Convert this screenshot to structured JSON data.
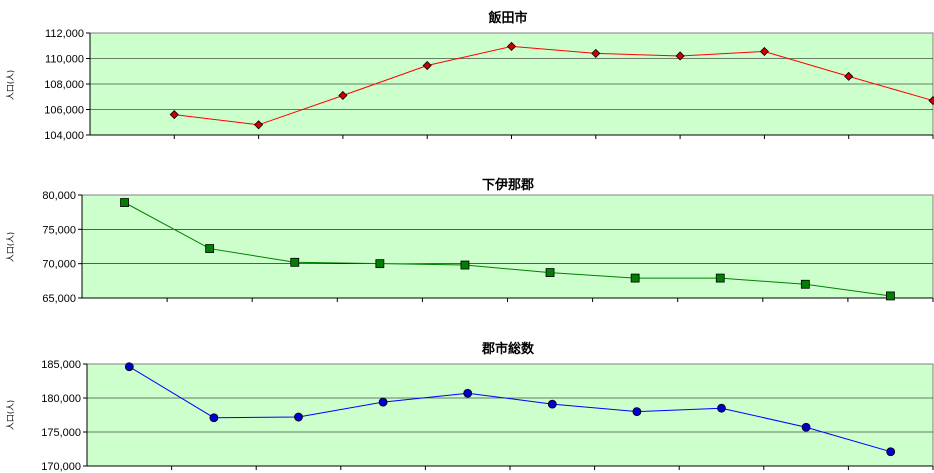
{
  "chart_data": [
    {
      "type": "line",
      "title": "飯田市",
      "ylabel": "人口(人)",
      "xlabel": "",
      "ylim": [
        104000,
        112000
      ],
      "yticks": [
        104000,
        106000,
        108000,
        110000,
        112000
      ],
      "ytick_labels": [
        "104,000",
        "106,000",
        "108,000",
        "110,000",
        "112,000"
      ],
      "grid": true,
      "plot_color": "#ccffcc",
      "series": [
        {
          "color": "#ff0000",
          "marker": "diamond",
          "marker_fill": "#cc0000",
          "values": [
            105600,
            104800,
            107100,
            109450,
            110950,
            110400,
            110200,
            110550,
            108600,
            106700
          ]
        }
      ]
    },
    {
      "type": "line",
      "title": "下伊那郡",
      "ylabel": "人口(人)",
      "xlabel": "",
      "ylim": [
        65000,
        80000
      ],
      "yticks": [
        65000,
        70000,
        75000,
        80000
      ],
      "ytick_labels": [
        "65,000",
        "70,000",
        "75,000",
        "80,000"
      ],
      "grid": true,
      "plot_color": "#ccffcc",
      "series": [
        {
          "color": "#008000",
          "marker": "square",
          "marker_fill": "#008000",
          "values": [
            78900,
            72200,
            70200,
            70000,
            69800,
            68700,
            67900,
            67900,
            67000,
            65300
          ]
        }
      ]
    },
    {
      "type": "line",
      "title": "郡市総数",
      "ylabel": "人口(人)",
      "xlabel": "",
      "ylim": [
        170000,
        185000
      ],
      "yticks": [
        170000,
        175000,
        180000,
        185000
      ],
      "ytick_labels": [
        "170,000",
        "175,000",
        "180,000",
        "185,000"
      ],
      "grid": true,
      "plot_color": "#ccffcc",
      "series": [
        {
          "color": "#0000ff",
          "marker": "circle",
          "marker_fill": "#0000cc",
          "values": [
            184600,
            177100,
            177200,
            179400,
            180700,
            179100,
            178000,
            178500,
            175700,
            172100
          ]
        }
      ]
    }
  ]
}
